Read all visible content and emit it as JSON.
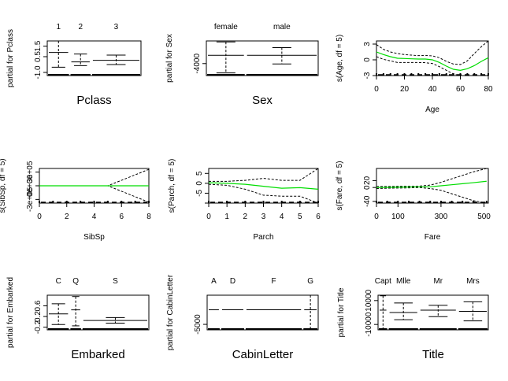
{
  "chart_data": [
    {
      "type": "box",
      "title": "",
      "xlabel": "Pclass",
      "ylabel": "partial for Pclass",
      "categories": [
        "1",
        "2",
        "3"
      ],
      "widths": [
        0.24,
        0.23,
        0.53
      ],
      "ylim": [
        -1.3,
        2.0
      ],
      "yticks": [
        -1.0,
        0.5,
        1.5
      ],
      "ytick_labels": [
        "-1.0",
        "0.5",
        "1.5"
      ],
      "values": [
        0.9,
        0.0,
        0.15
      ],
      "se_lower": [
        -0.5,
        -0.35,
        -0.25
      ],
      "se_upper": [
        2.0,
        0.75,
        0.65
      ],
      "rug": true
    },
    {
      "type": "box",
      "title": "",
      "xlabel": "Sex",
      "ylabel": "partial for Sex",
      "categories": [
        "female",
        "male"
      ],
      "widths": [
        0.35,
        0.65
      ],
      "ylim": [
        -7600,
        2800
      ],
      "yticks": [
        -4000
      ],
      "ytick_labels": [
        "-4000"
      ],
      "values": [
        -1500,
        -1500
      ],
      "se_lower": [
        -6800,
        -4100
      ],
      "se_upper": [
        2500,
        800
      ],
      "rug": true
    },
    {
      "type": "line",
      "title": "",
      "xlabel": "Age",
      "ylabel": "s(Age, df = 5)",
      "xlim": [
        0,
        80
      ],
      "ylim": [
        -3.0,
        3.6
      ],
      "xticks": [
        0,
        20,
        40,
        60,
        80
      ],
      "yticks": [
        -3,
        0,
        3
      ],
      "x": [
        0,
        5,
        10,
        15,
        20,
        25,
        30,
        35,
        40,
        45,
        50,
        55,
        60,
        65,
        70,
        75,
        80
      ],
      "fit": [
        1.5,
        1.0,
        0.6,
        0.3,
        0.25,
        0.2,
        0.15,
        0.15,
        0.0,
        -0.5,
        -1.2,
        -1.8,
        -2.0,
        -1.7,
        -1.1,
        -0.3,
        0.4
      ],
      "upper": [
        2.9,
        2.0,
        1.5,
        1.2,
        1.0,
        0.9,
        0.8,
        0.85,
        0.75,
        0.4,
        -0.3,
        -0.8,
        -0.9,
        -0.2,
        1.2,
        2.5,
        3.6
      ],
      "lower": [
        0.6,
        0.1,
        -0.2,
        -0.5,
        -0.5,
        -0.5,
        -0.5,
        -0.55,
        -0.7,
        -1.3,
        -2.0,
        -2.7,
        -3.0,
        -3.0,
        -3.0,
        -3.0,
        -2.9
      ],
      "rug": true
    },
    {
      "type": "line",
      "title": "",
      "xlabel": "SibSp",
      "ylabel": "s(SibSp, df = 5)",
      "xlim": [
        0,
        8
      ],
      "ylim": [
        -380000,
        380000
      ],
      "xticks": [
        0,
        2,
        4,
        6,
        8
      ],
      "yticks": [
        -300000,
        0,
        300000
      ],
      "ytick_labels": [
        "-3e+05",
        "0e+00",
        "3e+05"
      ],
      "x": [
        0,
        1,
        2,
        3,
        4,
        5,
        6,
        7,
        8
      ],
      "fit": [
        0,
        0,
        0,
        0,
        0,
        0,
        0,
        0,
        0
      ],
      "upper": [
        0,
        0,
        0,
        0,
        0,
        0,
        120000,
        240000,
        360000
      ],
      "lower": [
        0,
        0,
        0,
        0,
        0,
        0,
        -120000,
        -240000,
        -360000
      ],
      "rug": true
    },
    {
      "type": "line",
      "title": "",
      "xlabel": "Parch",
      "ylabel": "s(Parch, df = 5)",
      "xlim": [
        0,
        6
      ],
      "ylim": [
        -10,
        7.5
      ],
      "xticks": [
        0,
        1,
        2,
        3,
        4,
        5,
        6
      ],
      "yticks": [
        -10,
        -5,
        0,
        5
      ],
      "ytick_labels": [
        "",
        "-5",
        "0",
        "5"
      ],
      "x": [
        0,
        1,
        2,
        3,
        4,
        5,
        6
      ],
      "fit": [
        0.3,
        0.0,
        -0.5,
        -1.5,
        -2.5,
        -2.2,
        -3.0
      ],
      "upper": [
        1.0,
        1.0,
        1.5,
        2.5,
        1.5,
        1.5,
        7.5
      ],
      "lower": [
        -0.5,
        -1.0,
        -3.0,
        -6.0,
        -6.5,
        -6.5,
        -10.0
      ],
      "rug": true
    },
    {
      "type": "line",
      "title": "",
      "xlabel": "Fare",
      "ylabel": "s(Fare, df = 5)",
      "xlim": [
        0,
        520
      ],
      "ylim": [
        -45,
        55
      ],
      "xticks": [
        0,
        100,
        300,
        500
      ],
      "yticks": [
        -40,
        0,
        20
      ],
      "x": [
        0,
        50,
        100,
        150,
        200,
        250,
        300,
        350,
        400,
        450,
        512
      ],
      "fit": [
        0,
        0.5,
        1,
        1.5,
        2,
        2,
        5,
        8,
        11,
        14,
        18
      ],
      "upper": [
        3,
        3,
        3.5,
        3.5,
        4,
        7,
        15,
        25,
        35,
        45,
        55
      ],
      "lower": [
        -3,
        -2,
        -1.5,
        -1,
        0,
        -3,
        -8,
        -18,
        -28,
        -38,
        -45
      ],
      "rug": true
    },
    {
      "type": "box",
      "title": "",
      "xlabel": "Embarked",
      "ylabel": "partial for Embarked",
      "categories": [
        "C",
        "Q",
        "S"
      ],
      "widths": [
        0.22,
        0.12,
        0.66
      ],
      "ylim": [
        -0.3,
        1.0
      ],
      "yticks": [
        -0.2,
        0.2,
        0.6
      ],
      "ytick_labels": [
        "-0.2",
        "0.2",
        "0.6"
      ],
      "values": [
        0.3,
        0.45,
        0.05
      ],
      "se_lower": [
        -0.1,
        -0.15,
        -0.05
      ],
      "se_upper": [
        0.68,
        0.95,
        0.16
      ],
      "rug": true
    },
    {
      "type": "box",
      "title": "",
      "xlabel": "CabinLetter",
      "ylabel": "partial for CabinLetter",
      "categories": [
        "A",
        "D",
        "F",
        "G"
      ],
      "widths": [
        0.12,
        0.22,
        0.52,
        0.14
      ],
      "ylim": [
        -6500,
        3000
      ],
      "yticks": [
        -5000
      ],
      "ytick_labels": [
        "-5000"
      ],
      "values": [
        -1000,
        -1000,
        -1000,
        -1000
      ],
      "se_lower": [
        -1000,
        -1000,
        -1000,
        -6500
      ],
      "se_upper": [
        -1000,
        -1000,
        -1000,
        3000
      ],
      "rug": true
    },
    {
      "type": "box",
      "title": "",
      "xlabel": "Title",
      "ylabel": "partial for Title",
      "categories": [
        "Capt",
        "Mlle",
        "Mr",
        "Mrs"
      ],
      "widths": [
        0.09,
        0.28,
        0.35,
        0.28
      ],
      "ylim": [
        -14500,
        14500
      ],
      "yticks": [
        -10000,
        10000
      ],
      "ytick_labels": [
        "-10000",
        "10000"
      ],
      "values": [
        2000,
        0,
        2000,
        1000
      ],
      "se_lower": [
        -14000,
        -6000,
        -3500,
        -7000
      ],
      "se_upper": [
        14000,
        8000,
        6000,
        9000
      ],
      "rug": true
    }
  ]
}
